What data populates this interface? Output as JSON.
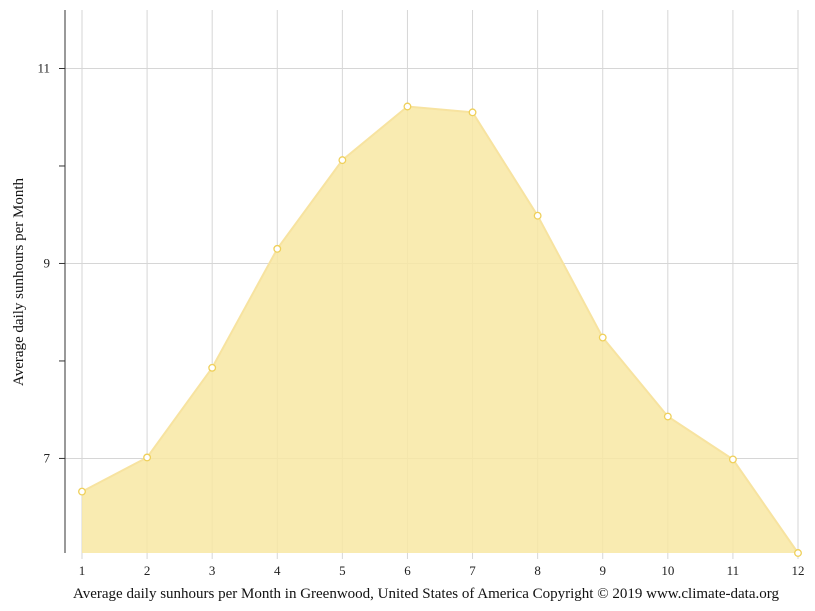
{
  "chart_data": {
    "type": "area",
    "title": "",
    "xlabel": "",
    "ylabel": "Average daily sunhours per Month",
    "caption": "Average daily sunhours per Month in Greenwood, United States of America Copyright © 2019 www.climate-data.org",
    "x": [
      1,
      2,
      3,
      4,
      5,
      6,
      7,
      8,
      9,
      10,
      11,
      12
    ],
    "series": [
      {
        "values": [
          6.66,
          7.01,
          7.93,
          9.15,
          10.06,
          10.61,
          10.55,
          9.49,
          8.24,
          7.43,
          6.99,
          6.03
        ]
      }
    ],
    "xlim": [
      1,
      12
    ],
    "ylim": [
      6.03,
      11.6
    ],
    "yticks": [
      7,
      9,
      11
    ],
    "grid": true,
    "legend": "none",
    "colors": {
      "fill": "#f8e8a3",
      "line": "#f7e3a0",
      "marker_stroke": "#efd05a"
    }
  }
}
